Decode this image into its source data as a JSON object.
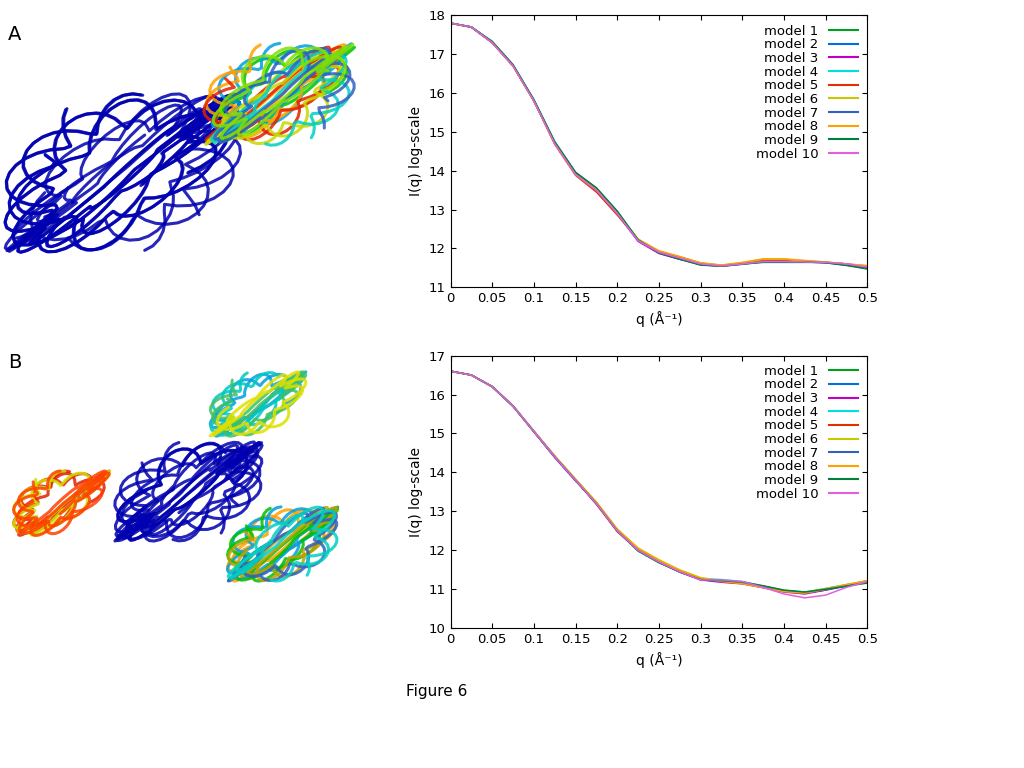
{
  "panel_labels": [
    "A",
    "B"
  ],
  "caption": "Figure 6",
  "chart_data": [
    {
      "type": "line",
      "x_label": "q (Å⁻¹)",
      "y_label": "I(q) log-scale",
      "xlim": [
        0,
        0.5
      ],
      "xticks": [
        0,
        0.05,
        0.1,
        0.15,
        0.2,
        0.25,
        0.3,
        0.35,
        0.4,
        0.45,
        0.5
      ],
      "ylim": [
        11,
        18
      ],
      "yticks": [
        11,
        12,
        13,
        14,
        15,
        16,
        17,
        18
      ],
      "legend": "upper right",
      "x": [
        0,
        0.025,
        0.05,
        0.075,
        0.1,
        0.125,
        0.15,
        0.175,
        0.2,
        0.225,
        0.25,
        0.275,
        0.3,
        0.325,
        0.35,
        0.375,
        0.4,
        0.425,
        0.45,
        0.475,
        0.5
      ],
      "series": [
        {
          "name": "model 1",
          "color": "#00a020",
          "values": [
            17.8,
            17.7,
            17.32,
            16.72,
            15.82,
            14.74,
            13.95,
            13.55,
            12.95,
            12.22,
            11.9,
            11.74,
            11.58,
            11.55,
            11.6,
            11.66,
            11.66,
            11.66,
            11.64,
            11.58,
            11.48
          ]
        },
        {
          "name": "model 2",
          "color": "#0070e0",
          "values": [
            17.8,
            17.7,
            17.3,
            16.7,
            15.8,
            14.7,
            13.9,
            13.5,
            12.9,
            12.2,
            11.88,
            11.72,
            11.6,
            11.56,
            11.62,
            11.68,
            11.67,
            11.65,
            11.63,
            11.57,
            11.5
          ]
        },
        {
          "name": "model 3",
          "color": "#c000c0",
          "values": [
            17.8,
            17.69,
            17.29,
            16.69,
            15.79,
            14.7,
            13.92,
            13.52,
            12.9,
            12.18,
            11.87,
            11.72,
            11.58,
            11.54,
            11.6,
            11.66,
            11.66,
            11.65,
            11.64,
            11.6,
            11.52
          ]
        },
        {
          "name": "model 4",
          "color": "#00e0e0",
          "values": [
            17.8,
            17.7,
            17.31,
            16.71,
            15.81,
            14.72,
            13.9,
            13.48,
            12.88,
            12.2,
            11.9,
            11.76,
            11.6,
            11.55,
            11.61,
            11.68,
            11.68,
            11.66,
            11.64,
            11.6,
            11.52
          ]
        },
        {
          "name": "model 5",
          "color": "#e03000",
          "values": [
            17.8,
            17.7,
            17.3,
            16.7,
            15.8,
            14.68,
            13.88,
            13.45,
            12.86,
            12.22,
            11.92,
            11.78,
            11.62,
            11.56,
            11.62,
            11.7,
            11.7,
            11.67,
            11.64,
            11.58,
            11.5
          ]
        },
        {
          "name": "model 6",
          "color": "#c8c800",
          "values": [
            17.8,
            17.7,
            17.3,
            16.7,
            15.8,
            14.7,
            13.9,
            13.5,
            12.92,
            12.24,
            11.93,
            11.78,
            11.62,
            11.57,
            11.63,
            11.72,
            11.72,
            11.68,
            11.65,
            11.6,
            11.55
          ]
        },
        {
          "name": "model 7",
          "color": "#3060c0",
          "values": [
            17.8,
            17.7,
            17.3,
            16.71,
            15.81,
            14.71,
            13.91,
            13.5,
            12.9,
            12.21,
            11.9,
            11.75,
            11.6,
            11.55,
            11.6,
            11.64,
            11.64,
            11.64,
            11.64,
            11.6,
            11.5
          ]
        },
        {
          "name": "model 8",
          "color": "#ffa000",
          "values": [
            17.8,
            17.7,
            17.3,
            16.7,
            15.8,
            14.7,
            13.91,
            13.51,
            12.91,
            12.23,
            11.94,
            11.79,
            11.63,
            11.57,
            11.64,
            11.73,
            11.73,
            11.69,
            11.65,
            11.6,
            11.56
          ]
        },
        {
          "name": "model 9",
          "color": "#008040",
          "values": [
            17.8,
            17.7,
            17.33,
            16.73,
            15.83,
            14.75,
            13.96,
            13.56,
            12.96,
            12.22,
            11.88,
            11.72,
            11.57,
            11.54,
            11.59,
            11.65,
            11.65,
            11.65,
            11.63,
            11.56,
            11.47
          ]
        },
        {
          "name": "model 10",
          "color": "#e060e0",
          "values": [
            17.8,
            17.7,
            17.3,
            16.7,
            15.8,
            14.7,
            13.9,
            13.5,
            12.9,
            12.2,
            11.9,
            11.75,
            11.6,
            11.55,
            11.6,
            11.66,
            11.66,
            11.65,
            11.64,
            11.6,
            11.52
          ]
        }
      ]
    },
    {
      "type": "line",
      "x_label": "q (Å⁻¹)",
      "y_label": "I(q) log-scale",
      "xlim": [
        0,
        0.5
      ],
      "xticks": [
        0,
        0.05,
        0.1,
        0.15,
        0.2,
        0.25,
        0.3,
        0.35,
        0.4,
        0.45,
        0.5
      ],
      "ylim": [
        10,
        17
      ],
      "yticks": [
        10,
        11,
        12,
        13,
        14,
        15,
        16,
        17
      ],
      "legend": "upper right",
      "x": [
        0,
        0.025,
        0.05,
        0.075,
        0.1,
        0.125,
        0.15,
        0.175,
        0.2,
        0.225,
        0.25,
        0.275,
        0.3,
        0.325,
        0.35,
        0.375,
        0.4,
        0.425,
        0.45,
        0.475,
        0.5
      ],
      "series": [
        {
          "name": "model 1",
          "color": "#00a020",
          "values": [
            16.6,
            16.5,
            16.2,
            15.7,
            15.05,
            14.4,
            13.8,
            13.2,
            12.5,
            11.98,
            11.68,
            11.45,
            11.27,
            11.22,
            11.18,
            11.08,
            10.96,
            10.92,
            11.0,
            11.1,
            11.18
          ]
        },
        {
          "name": "model 2",
          "color": "#0070e0",
          "values": [
            16.6,
            16.5,
            16.21,
            15.71,
            15.06,
            14.42,
            13.82,
            13.2,
            12.52,
            12.02,
            11.72,
            11.47,
            11.26,
            11.2,
            11.15,
            11.05,
            10.95,
            10.9,
            10.98,
            11.08,
            11.2
          ]
        },
        {
          "name": "model 3",
          "color": "#c000c0",
          "values": [
            16.6,
            16.5,
            16.2,
            15.7,
            15.04,
            14.38,
            13.78,
            13.22,
            12.5,
            12.0,
            11.7,
            11.44,
            11.24,
            11.18,
            11.14,
            11.04,
            10.93,
            10.88,
            10.98,
            11.1,
            11.22
          ]
        },
        {
          "name": "model 4",
          "color": "#00e0e0",
          "values": [
            16.6,
            16.5,
            16.2,
            15.7,
            15.05,
            14.4,
            13.8,
            13.2,
            12.5,
            12.0,
            11.71,
            11.46,
            11.28,
            11.25,
            11.2,
            11.08,
            10.97,
            10.93,
            11.02,
            11.12,
            11.2
          ]
        },
        {
          "name": "model 5",
          "color": "#e03000",
          "values": [
            16.6,
            16.5,
            16.2,
            15.7,
            15.05,
            14.41,
            13.8,
            13.18,
            12.48,
            12.0,
            11.7,
            11.45,
            11.26,
            11.22,
            11.18,
            11.06,
            10.96,
            10.92,
            11.0,
            11.1,
            11.2
          ]
        },
        {
          "name": "model 6",
          "color": "#c8c800",
          "values": [
            16.6,
            16.5,
            16.2,
            15.7,
            15.06,
            14.42,
            13.83,
            13.24,
            12.55,
            12.06,
            11.76,
            11.5,
            11.3,
            11.22,
            11.16,
            11.06,
            10.96,
            10.92,
            11.02,
            11.12,
            11.22
          ]
        },
        {
          "name": "model 7",
          "color": "#3060c0",
          "values": [
            16.6,
            16.5,
            16.2,
            15.7,
            15.05,
            14.4,
            13.8,
            13.2,
            12.5,
            12.0,
            11.7,
            11.45,
            11.25,
            11.2,
            11.15,
            11.05,
            10.95,
            10.9,
            11.0,
            11.1,
            11.2
          ]
        },
        {
          "name": "model 8",
          "color": "#ffa000",
          "values": [
            16.6,
            16.5,
            16.2,
            15.7,
            15.06,
            14.42,
            13.82,
            13.23,
            12.53,
            12.05,
            11.74,
            11.48,
            11.28,
            11.2,
            11.14,
            11.04,
            10.94,
            10.9,
            11.0,
            11.12,
            11.22
          ]
        },
        {
          "name": "model 9",
          "color": "#008040",
          "values": [
            16.6,
            16.5,
            16.2,
            15.7,
            15.05,
            14.4,
            13.8,
            13.2,
            12.5,
            11.99,
            11.69,
            11.44,
            11.25,
            11.22,
            11.19,
            11.09,
            10.98,
            10.93,
            11.0,
            11.08,
            11.16
          ]
        },
        {
          "name": "model 10",
          "color": "#e060e0",
          "values": [
            16.6,
            16.5,
            16.2,
            15.7,
            15.05,
            14.4,
            13.8,
            13.2,
            12.5,
            12.0,
            11.7,
            11.45,
            11.24,
            11.24,
            11.2,
            11.05,
            10.88,
            10.78,
            10.85,
            11.05,
            11.2
          ]
        }
      ]
    }
  ]
}
